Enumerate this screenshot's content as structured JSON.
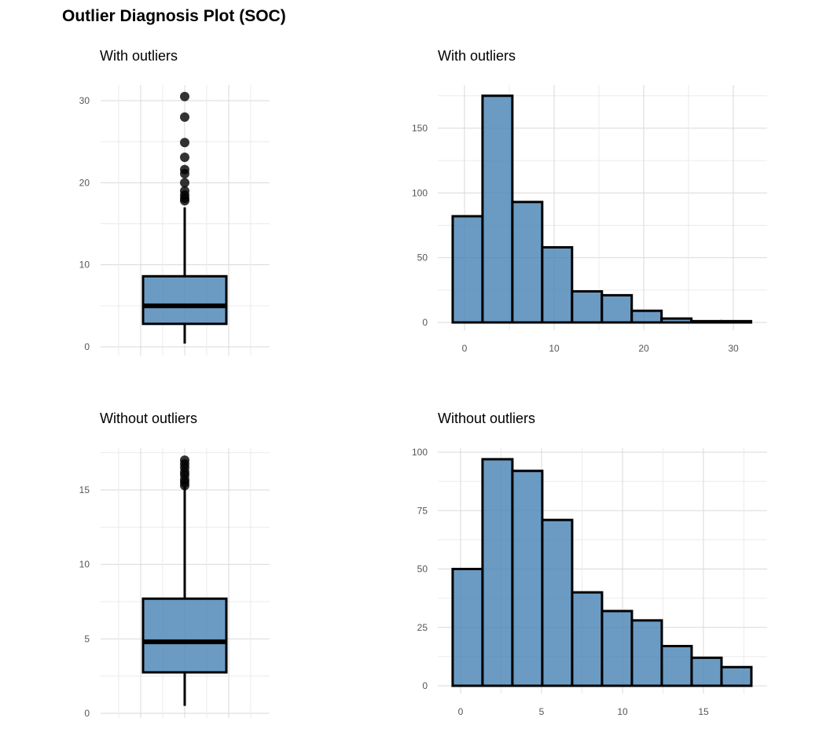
{
  "title": "Outlier Diagnosis Plot (SOC)",
  "fill_color": "#4682B4",
  "chart_data": [
    {
      "type": "boxplot",
      "title": "With outliers",
      "ylim": [
        0,
        31
      ],
      "yticks": [
        0,
        10,
        20,
        30
      ],
      "grid": true,
      "box": {
        "lower_whisker": 0.4,
        "q1": 2.8,
        "median": 5.0,
        "q3": 8.6,
        "upper_whisker": 17.0
      },
      "outliers": [
        17.8,
        18.1,
        18.5,
        19.0,
        20.0,
        21.1,
        21.6,
        23.1,
        24.9,
        28.0,
        30.5
      ]
    },
    {
      "type": "bar",
      "title": "With outliers",
      "bin_start": -1.32,
      "bin_width": 3.33,
      "values": [
        82,
        175,
        93,
        58,
        24,
        21,
        9,
        3,
        1,
        1
      ],
      "xlim": [
        -2.5,
        33.5
      ],
      "ylim": [
        0,
        180
      ],
      "xticks": [
        0,
        10,
        20,
        30
      ],
      "yticks": [
        0,
        50,
        100,
        150
      ],
      "grid": true
    },
    {
      "type": "boxplot",
      "title": "Without outliers",
      "ylim": [
        0,
        17.5
      ],
      "yticks": [
        0,
        5,
        10,
        15
      ],
      "grid": true,
      "box": {
        "lower_whisker": 0.5,
        "q1": 2.75,
        "median": 4.8,
        "q3": 7.7,
        "upper_whisker": 15.2
      },
      "outliers": [
        15.3,
        15.5,
        15.7,
        16.0,
        16.2,
        16.5,
        16.75,
        17.0
      ]
    },
    {
      "type": "bar",
      "title": "Without outliers",
      "bin_start": -0.49,
      "bin_width": 1.845,
      "values": [
        50,
        97,
        92,
        71,
        40,
        32,
        28,
        17,
        12,
        8
      ],
      "xlim": [
        -1.0,
        18.5
      ],
      "ylim": [
        0,
        100
      ],
      "xticks": [
        0,
        5,
        10,
        15
      ],
      "yticks": [
        0,
        25,
        50,
        75,
        100
      ],
      "grid": true
    }
  ]
}
